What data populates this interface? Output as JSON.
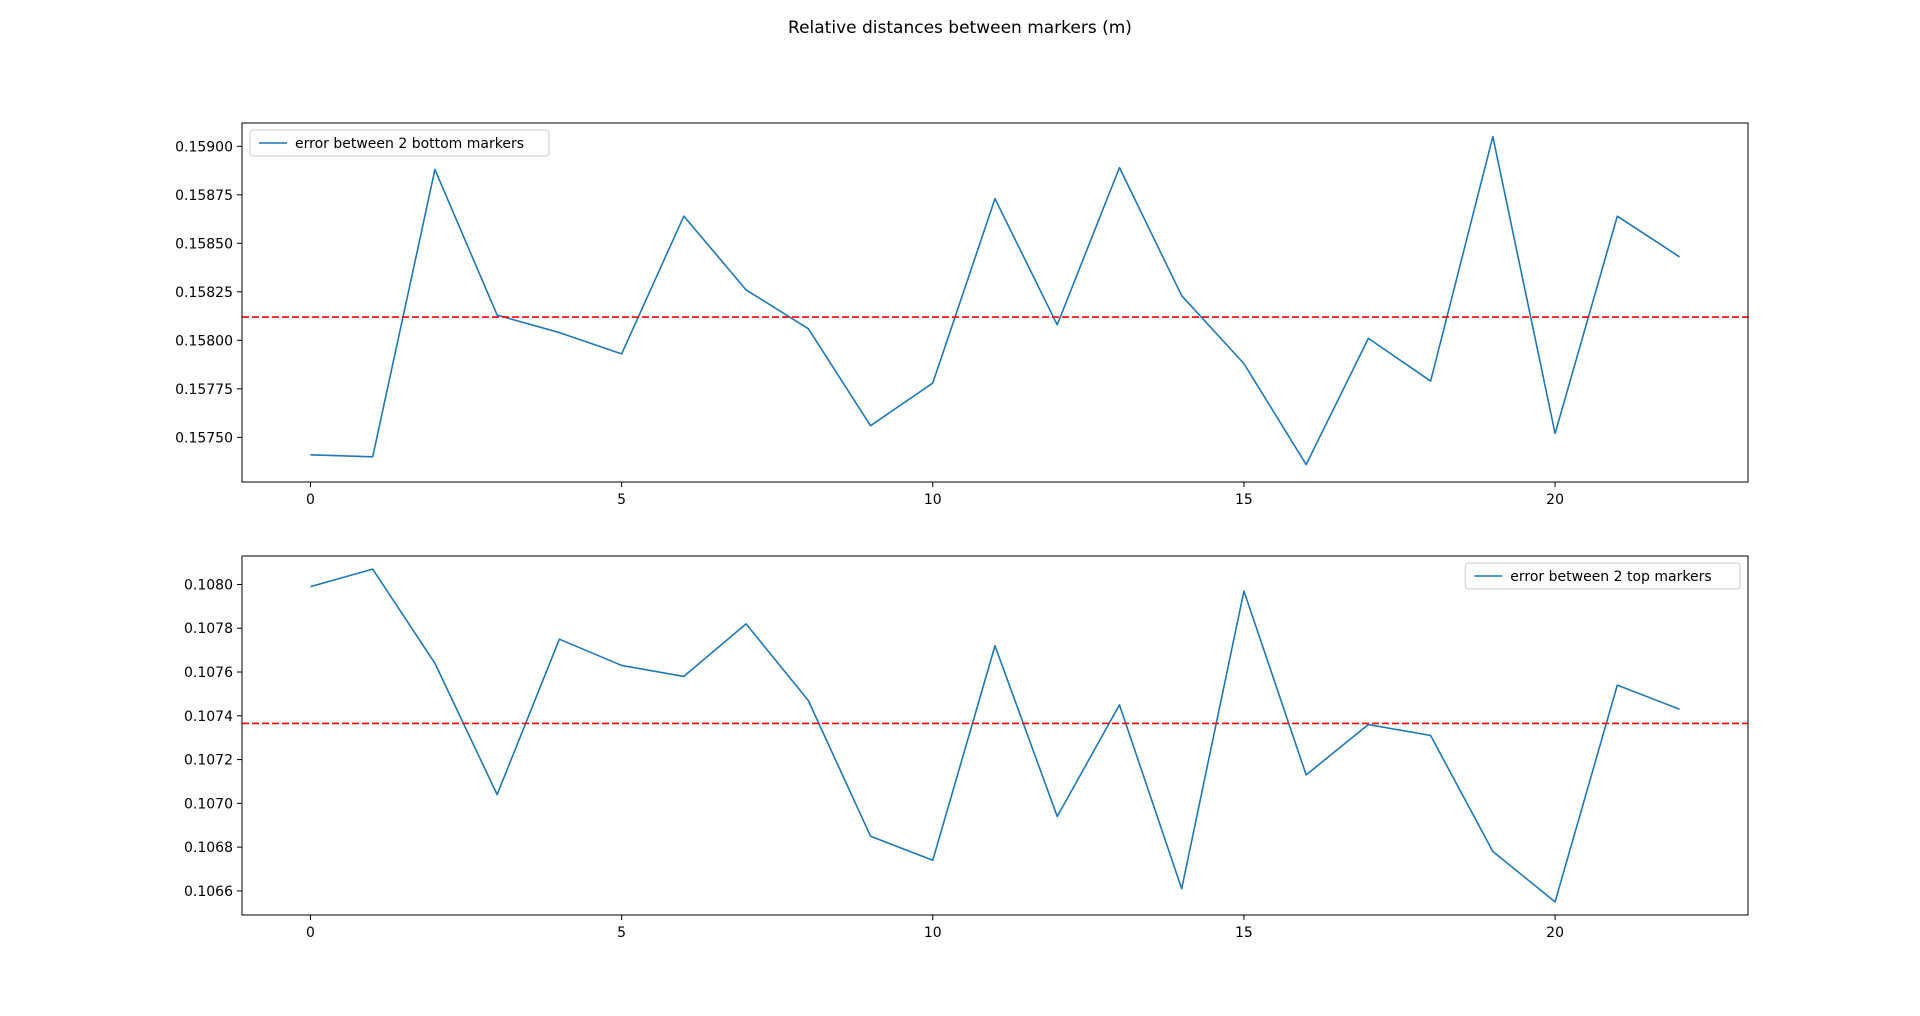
{
  "figure": {
    "suptitle": "Relative distances between markers (m)"
  },
  "chart_data": [
    {
      "type": "line",
      "title": "",
      "xlabel": "",
      "ylabel": "",
      "x": [
        0,
        1,
        2,
        3,
        4,
        5,
        6,
        7,
        8,
        9,
        10,
        11,
        12,
        13,
        14,
        15,
        16,
        17,
        18,
        19,
        20,
        21,
        22
      ],
      "series": [
        {
          "name": "error between 2 bottom markers",
          "color": "#1f77b4",
          "values": [
            0.15741,
            0.1574,
            0.15888,
            0.15813,
            0.15804,
            0.15793,
            0.15864,
            0.15826,
            0.15806,
            0.15756,
            0.15778,
            0.15873,
            0.15808,
            0.15889,
            0.15823,
            0.15788,
            0.15736,
            0.15801,
            0.15779,
            0.15905,
            0.15752,
            0.15864,
            0.15843
          ]
        }
      ],
      "reference_line": {
        "y": 0.15812,
        "color": "#ff0000",
        "style": "dashed"
      },
      "xlim": [
        -1.1,
        23.1
      ],
      "ylim": [
        0.15727,
        0.15912
      ],
      "xticks": [
        0,
        5,
        10,
        15,
        20
      ],
      "xtick_labels": [
        "0",
        "5",
        "10",
        "15",
        "20"
      ],
      "yticks": [
        0.1575,
        0.15775,
        0.158,
        0.15825,
        0.1585,
        0.15875,
        0.159
      ],
      "ytick_labels": [
        "0.15750",
        "0.15775",
        "0.15800",
        "0.15825",
        "0.15850",
        "0.15875",
        "0.15900"
      ],
      "legend": "top-left",
      "grid": false
    },
    {
      "type": "line",
      "title": "",
      "xlabel": "",
      "ylabel": "",
      "x": [
        0,
        1,
        2,
        3,
        4,
        5,
        6,
        7,
        8,
        9,
        10,
        11,
        12,
        13,
        14,
        15,
        16,
        17,
        18,
        19,
        20,
        21,
        22
      ],
      "series": [
        {
          "name": "error between 2 top markers",
          "color": "#1f77b4",
          "values": [
            0.10799,
            0.10807,
            0.10764,
            0.10704,
            0.10775,
            0.10763,
            0.10758,
            0.10782,
            0.10747,
            0.10685,
            0.10674,
            0.10772,
            0.10694,
            0.10745,
            0.10661,
            0.10797,
            0.10713,
            0.10736,
            0.10731,
            0.10678,
            0.10655,
            0.10754,
            0.10743
          ]
        }
      ],
      "reference_line": {
        "y": 0.107365,
        "color": "#ff0000",
        "style": "dashed"
      },
      "xlim": [
        -1.1,
        23.1
      ],
      "ylim": [
        0.10649,
        0.10813
      ],
      "xticks": [
        0,
        5,
        10,
        15,
        20
      ],
      "xtick_labels": [
        "0",
        "5",
        "10",
        "15",
        "20"
      ],
      "yticks": [
        0.1066,
        0.1068,
        0.107,
        0.1072,
        0.1074,
        0.1076,
        0.1078,
        0.108
      ],
      "ytick_labels": [
        "0.1066",
        "0.1068",
        "0.1070",
        "0.1072",
        "0.1074",
        "0.1076",
        "0.1078",
        "0.1080"
      ],
      "legend": "top-right",
      "grid": false
    }
  ]
}
